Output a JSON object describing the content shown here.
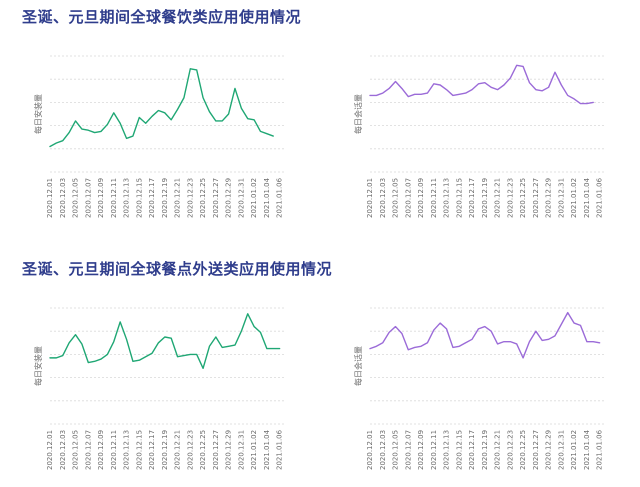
{
  "sections": [
    {
      "title": "圣诞、元旦期间全球餐饮类应用使用情况"
    },
    {
      "title": "圣诞、元旦期间全球餐点外送类应用使用情况"
    }
  ],
  "colors": {
    "downloads": "#1fa774",
    "sessions": "#9b6bd8",
    "title": "#2f3d8c",
    "grid": "#d9d9d9"
  },
  "chart_data": [
    {
      "type": "line",
      "ylabel": "每日安装量",
      "color": "#1fa774",
      "ylim": [
        0,
        100
      ],
      "grid": true,
      "x": [
        "2020.12.01",
        "2020.12.02",
        "2020.12.03",
        "2020.12.04",
        "2020.12.05",
        "2020.12.06",
        "2020.12.07",
        "2020.12.08",
        "2020.12.09",
        "2020.12.10",
        "2020.12.11",
        "2020.12.12",
        "2020.12.13",
        "2020.12.14",
        "2020.12.15",
        "2020.12.16",
        "2020.12.17",
        "2020.12.18",
        "2020.12.19",
        "2020.12.20",
        "2020.12.21",
        "2020.12.22",
        "2020.12.23",
        "2020.12.24",
        "2020.12.25",
        "2020.12.26",
        "2020.12.27",
        "2020.12.28",
        "2020.12.29",
        "2020.12.30",
        "2020.12.31",
        "2021.01.01",
        "2021.01.02",
        "2021.01.03",
        "2021.01.04",
        "2021.01.05",
        "2021.01.06",
        "2021.01.07"
      ],
      "xticks": [
        "2020.12.01",
        "2020.12.03",
        "2020.12.05",
        "2020.12.07",
        "2020.12.09",
        "2020.12.11",
        "2020.12.13",
        "2020.12.15",
        "2020.12.17",
        "2020.12.19",
        "2020.12.21",
        "2020.12.23",
        "2020.12.25",
        "2020.12.27",
        "2020.12.29",
        "2020.12.31",
        "2021.01.02",
        "2021.01.04",
        "2021.01.06"
      ],
      "values": [
        22,
        25,
        27,
        34,
        44,
        37,
        36,
        34,
        35,
        41,
        51,
        42,
        29,
        31,
        47,
        42,
        48,
        53,
        51,
        45,
        54,
        64,
        89,
        88,
        64,
        52,
        44,
        44,
        50,
        72,
        55,
        46,
        45,
        35,
        33,
        31,
        null,
        null
      ]
    },
    {
      "type": "line",
      "ylabel": "每日会话量",
      "color": "#9b6bd8",
      "ylim": [
        0,
        100
      ],
      "grid": true,
      "x": [
        "2020.12.01",
        "2020.12.02",
        "2020.12.03",
        "2020.12.04",
        "2020.12.05",
        "2020.12.06",
        "2020.12.07",
        "2020.12.08",
        "2020.12.09",
        "2020.12.10",
        "2020.12.11",
        "2020.12.12",
        "2020.12.13",
        "2020.12.14",
        "2020.12.15",
        "2020.12.16",
        "2020.12.17",
        "2020.12.18",
        "2020.12.19",
        "2020.12.20",
        "2020.12.21",
        "2020.12.22",
        "2020.12.23",
        "2020.12.24",
        "2020.12.25",
        "2020.12.26",
        "2020.12.27",
        "2020.12.28",
        "2020.12.29",
        "2020.12.30",
        "2020.12.31",
        "2021.01.01",
        "2021.01.02",
        "2021.01.03",
        "2021.01.04",
        "2021.01.05",
        "2021.01.06",
        "2021.01.07"
      ],
      "xticks": [
        "2020.12.01",
        "2020.12.03",
        "2020.12.05",
        "2020.12.07",
        "2020.12.09",
        "2020.12.11",
        "2020.12.13",
        "2020.12.15",
        "2020.12.17",
        "2020.12.19",
        "2020.12.21",
        "2020.12.23",
        "2020.12.25",
        "2020.12.27",
        "2020.12.29",
        "2020.12.31",
        "2021.01.02",
        "2021.01.04",
        "2021.01.06"
      ],
      "values": [
        66,
        66,
        68,
        72,
        78,
        72,
        65,
        67,
        67,
        68,
        76,
        75,
        71,
        66,
        67,
        68,
        71,
        76,
        77,
        73,
        71,
        75,
        81,
        92,
        91,
        77,
        71,
        70,
        73,
        86,
        75,
        66,
        63,
        59,
        59,
        60,
        null,
        null
      ]
    },
    {
      "type": "line",
      "ylabel": "每日安装量",
      "color": "#1fa774",
      "ylim": [
        0,
        100
      ],
      "grid": true,
      "x": [
        "2020.12.01",
        "2020.12.02",
        "2020.12.03",
        "2020.12.04",
        "2020.12.05",
        "2020.12.06",
        "2020.12.07",
        "2020.12.08",
        "2020.12.09",
        "2020.12.10",
        "2020.12.11",
        "2020.12.12",
        "2020.12.13",
        "2020.12.14",
        "2020.12.15",
        "2020.12.16",
        "2020.12.17",
        "2020.12.18",
        "2020.12.19",
        "2020.12.20",
        "2020.12.21",
        "2020.12.22",
        "2020.12.23",
        "2020.12.24",
        "2020.12.25",
        "2020.12.26",
        "2020.12.27",
        "2020.12.28",
        "2020.12.29",
        "2020.12.30",
        "2020.12.31",
        "2021.01.01",
        "2021.01.02",
        "2021.01.03",
        "2021.01.04",
        "2021.01.05",
        "2021.01.06",
        "2021.01.07"
      ],
      "xticks": [
        "2020.12.01",
        "2020.12.03",
        "2020.12.05",
        "2020.12.07",
        "2020.12.09",
        "2020.12.11",
        "2020.12.13",
        "2020.12.15",
        "2020.12.17",
        "2020.12.19",
        "2020.12.21",
        "2020.12.23",
        "2020.12.25",
        "2020.12.27",
        "2020.12.29",
        "2020.12.31",
        "2021.01.02",
        "2021.01.04",
        "2021.01.06"
      ],
      "values": [
        57,
        57,
        59,
        70,
        77,
        69,
        53,
        54,
        56,
        60,
        71,
        88,
        73,
        54,
        55,
        58,
        61,
        70,
        75,
        74,
        58,
        59,
        60,
        60,
        48,
        67,
        75,
        66,
        67,
        68,
        80,
        95,
        84,
        79,
        65,
        65,
        65,
        null
      ]
    },
    {
      "type": "line",
      "ylabel": "每日会话量",
      "color": "#9b6bd8",
      "ylim": [
        0,
        100
      ],
      "grid": true,
      "x": [
        "2020.12.01",
        "2020.12.02",
        "2020.12.03",
        "2020.12.04",
        "2020.12.05",
        "2020.12.06",
        "2020.12.07",
        "2020.12.08",
        "2020.12.09",
        "2020.12.10",
        "2020.12.11",
        "2020.12.12",
        "2020.12.13",
        "2020.12.14",
        "2020.12.15",
        "2020.12.16",
        "2020.12.17",
        "2020.12.18",
        "2020.12.19",
        "2020.12.20",
        "2020.12.21",
        "2020.12.22",
        "2020.12.23",
        "2020.12.24",
        "2020.12.25",
        "2020.12.26",
        "2020.12.27",
        "2020.12.28",
        "2020.12.29",
        "2020.12.30",
        "2020.12.31",
        "2021.01.01",
        "2021.01.02",
        "2021.01.03",
        "2021.01.04",
        "2021.01.05",
        "2021.01.06",
        "2021.01.07"
      ],
      "xticks": [
        "2020.12.01",
        "2020.12.03",
        "2020.12.05",
        "2020.12.07",
        "2020.12.09",
        "2020.12.11",
        "2020.12.13",
        "2020.12.15",
        "2020.12.17",
        "2020.12.19",
        "2020.12.21",
        "2020.12.23",
        "2020.12.25",
        "2020.12.27",
        "2020.12.29",
        "2020.12.31",
        "2021.01.02",
        "2021.01.04",
        "2021.01.06"
      ],
      "values": [
        65,
        67,
        70,
        79,
        84,
        78,
        64,
        66,
        67,
        70,
        81,
        87,
        82,
        66,
        67,
        70,
        73,
        82,
        84,
        80,
        69,
        71,
        71,
        69,
        57,
        71,
        80,
        72,
        73,
        76,
        86,
        96,
        87,
        85,
        71,
        71,
        70,
        null
      ]
    }
  ]
}
